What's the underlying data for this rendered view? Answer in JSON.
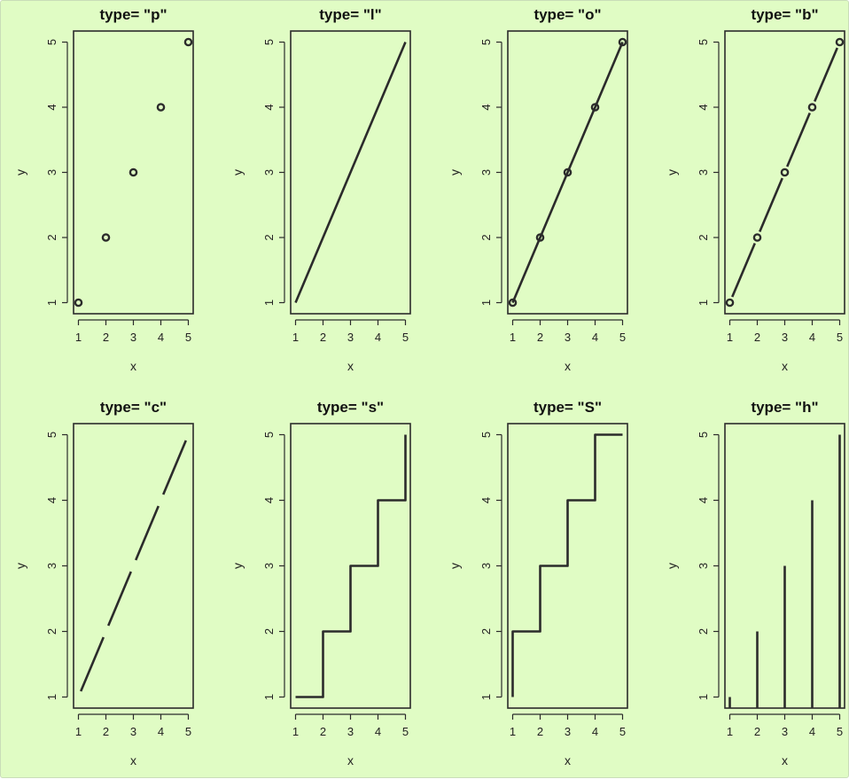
{
  "chart_data": [
    {
      "type": "scatter",
      "plot_type": "p",
      "title": "type= \"p\"",
      "xlabel": "x",
      "ylabel": "y",
      "x": [
        1,
        2,
        3,
        4,
        5
      ],
      "y": [
        1,
        2,
        3,
        4,
        5
      ],
      "xlim": [
        1,
        5
      ],
      "ylim": [
        1,
        5
      ],
      "xticks": [
        "1",
        "2",
        "3",
        "4",
        "5"
      ],
      "yticks": [
        "1",
        "2",
        "3",
        "4",
        "5"
      ],
      "grid": false
    },
    {
      "type": "line",
      "plot_type": "l",
      "title": "type= \"l\"",
      "xlabel": "x",
      "ylabel": "y",
      "x": [
        1,
        2,
        3,
        4,
        5
      ],
      "y": [
        1,
        2,
        3,
        4,
        5
      ],
      "xlim": [
        1,
        5
      ],
      "ylim": [
        1,
        5
      ],
      "xticks": [
        "1",
        "2",
        "3",
        "4",
        "5"
      ],
      "yticks": [
        "1",
        "2",
        "3",
        "4",
        "5"
      ],
      "grid": false
    },
    {
      "type": "line",
      "plot_type": "o",
      "title": "type= \"o\"",
      "xlabel": "x",
      "ylabel": "y",
      "x": [
        1,
        2,
        3,
        4,
        5
      ],
      "y": [
        1,
        2,
        3,
        4,
        5
      ],
      "xlim": [
        1,
        5
      ],
      "ylim": [
        1,
        5
      ],
      "xticks": [
        "1",
        "2",
        "3",
        "4",
        "5"
      ],
      "yticks": [
        "1",
        "2",
        "3",
        "4",
        "5"
      ],
      "grid": false
    },
    {
      "type": "line",
      "plot_type": "b",
      "title": "type= \"b\"",
      "xlabel": "x",
      "ylabel": "y",
      "x": [
        1,
        2,
        3,
        4,
        5
      ],
      "y": [
        1,
        2,
        3,
        4,
        5
      ],
      "xlim": [
        1,
        5
      ],
      "ylim": [
        1,
        5
      ],
      "xticks": [
        "1",
        "2",
        "3",
        "4",
        "5"
      ],
      "yticks": [
        "1",
        "2",
        "3",
        "4",
        "5"
      ],
      "grid": false
    },
    {
      "type": "line",
      "plot_type": "c",
      "title": "type= \"c\"",
      "xlabel": "x",
      "ylabel": "y",
      "x": [
        1,
        2,
        3,
        4,
        5
      ],
      "y": [
        1,
        2,
        3,
        4,
        5
      ],
      "xlim": [
        1,
        5
      ],
      "ylim": [
        1,
        5
      ],
      "xticks": [
        "1",
        "2",
        "3",
        "4",
        "5"
      ],
      "yticks": [
        "1",
        "2",
        "3",
        "4",
        "5"
      ],
      "grid": false
    },
    {
      "type": "line",
      "plot_type": "s",
      "title": "type= \"s\"",
      "xlabel": "x",
      "ylabel": "y",
      "x": [
        1,
        2,
        3,
        4,
        5
      ],
      "y": [
        1,
        2,
        3,
        4,
        5
      ],
      "xlim": [
        1,
        5
      ],
      "ylim": [
        1,
        5
      ],
      "xticks": [
        "1",
        "2",
        "3",
        "4",
        "5"
      ],
      "yticks": [
        "1",
        "2",
        "3",
        "4",
        "5"
      ],
      "grid": false
    },
    {
      "type": "line",
      "plot_type": "S",
      "title": "type= \"S\"",
      "xlabel": "x",
      "ylabel": "y",
      "x": [
        1,
        2,
        3,
        4,
        5
      ],
      "y": [
        1,
        2,
        3,
        4,
        5
      ],
      "xlim": [
        1,
        5
      ],
      "ylim": [
        1,
        5
      ],
      "xticks": [
        "1",
        "2",
        "3",
        "4",
        "5"
      ],
      "yticks": [
        "1",
        "2",
        "3",
        "4",
        "5"
      ],
      "grid": false
    },
    {
      "type": "bar",
      "plot_type": "h",
      "title": "type= \"h\"",
      "xlabel": "x",
      "ylabel": "y",
      "x": [
        1,
        2,
        3,
        4,
        5
      ],
      "y": [
        1,
        2,
        3,
        4,
        5
      ],
      "xlim": [
        1,
        5
      ],
      "ylim": [
        1,
        5
      ],
      "xticks": [
        "1",
        "2",
        "3",
        "4",
        "5"
      ],
      "yticks": [
        "1",
        "2",
        "3",
        "4",
        "5"
      ],
      "grid": false
    }
  ],
  "colors": {
    "background": "#e0fcc4",
    "ink": "#2b2b2b"
  }
}
